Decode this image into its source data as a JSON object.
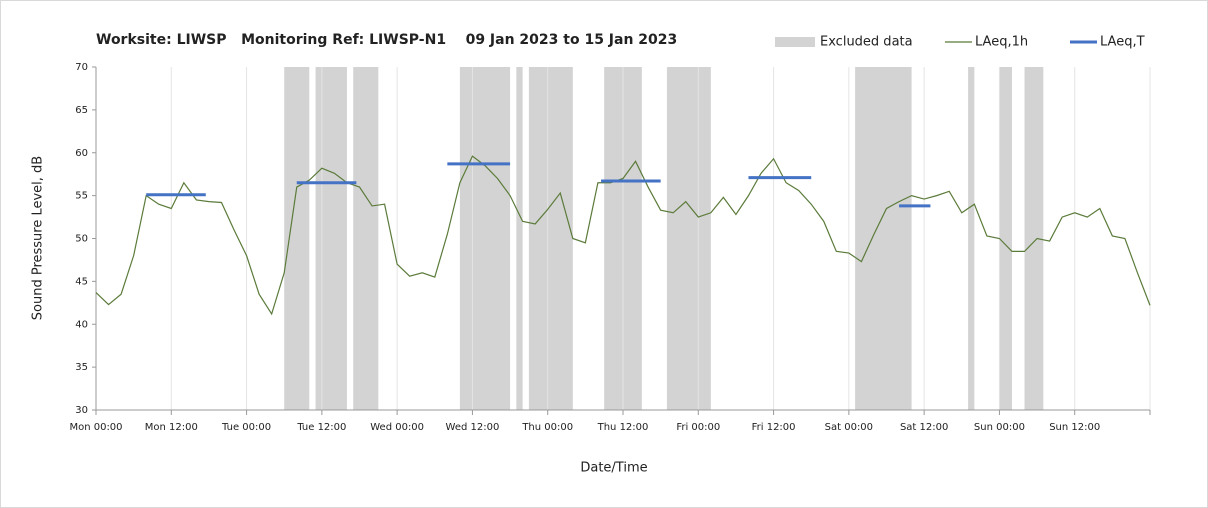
{
  "chart_data": {
    "type": "line",
    "title": "Worksite: LIWSP   Monitoring Ref: LIWSP-N1    09 Jan 2023 to 15 Jan 2023",
    "x_label": "Date/Time",
    "y_label": "Sound Pressure Level, dB",
    "xlim": [
      0,
      168
    ],
    "xticks": [
      {
        "value": 0,
        "label": "Mon 00:00"
      },
      {
        "value": 12,
        "label": "Mon 12:00"
      },
      {
        "value": 24,
        "label": "Tue 00:00"
      },
      {
        "value": 36,
        "label": "Tue 12:00"
      },
      {
        "value": 48,
        "label": "Wed 00:00"
      },
      {
        "value": 60,
        "label": "Wed 12:00"
      },
      {
        "value": 72,
        "label": "Thu 00:00"
      },
      {
        "value": 84,
        "label": "Thu 12:00"
      },
      {
        "value": 96,
        "label": "Fri 00:00"
      },
      {
        "value": 108,
        "label": "Fri 12:00"
      },
      {
        "value": 120,
        "label": "Sat 00:00"
      },
      {
        "value": 132,
        "label": "Sat 12:00"
      },
      {
        "value": 144,
        "label": "Sun 00:00"
      },
      {
        "value": 156,
        "label": "Sun 12:00"
      },
      {
        "value": 168,
        "label": ""
      }
    ],
    "ylim": [
      30,
      70
    ],
    "yticks": [
      30,
      35,
      40,
      45,
      50,
      55,
      60,
      65,
      70
    ],
    "grid": true,
    "excluded": {
      "name": "Excluded data",
      "color": "#d3d3d3",
      "ranges": [
        [
          30,
          34
        ],
        [
          35,
          40
        ],
        [
          41,
          45
        ],
        [
          58,
          66
        ],
        [
          67,
          68
        ],
        [
          69,
          76
        ],
        [
          81,
          87
        ],
        [
          91,
          98
        ],
        [
          121,
          130
        ],
        [
          139,
          140
        ],
        [
          144,
          146
        ],
        [
          148,
          151
        ]
      ]
    },
    "x": [
      0,
      2,
      4,
      6,
      8,
      10,
      12,
      14,
      16,
      18,
      20,
      22,
      24,
      26,
      28,
      30,
      32,
      34,
      36,
      38,
      40,
      42,
      44,
      46,
      48,
      50,
      52,
      54,
      56,
      58,
      60,
      62,
      64,
      66,
      68,
      70,
      72,
      74,
      76,
      78,
      80,
      82,
      84,
      86,
      88,
      90,
      92,
      94,
      96,
      98,
      100,
      102,
      104,
      106,
      108,
      110,
      112,
      114,
      116,
      118,
      120,
      122,
      124,
      126,
      128,
      130,
      132,
      134,
      136,
      138,
      140,
      142,
      144,
      146,
      148,
      150,
      152,
      154,
      156,
      158,
      160,
      162,
      164,
      166,
      168
    ],
    "series": [
      {
        "name": "LAeq,1h",
        "color": "#5b7b3a",
        "values": [
          43.7,
          42.3,
          43.5,
          48,
          55,
          54,
          53.5,
          56.5,
          54.5,
          54.3,
          54.2,
          51,
          48,
          43.5,
          41.2,
          46,
          56,
          56.8,
          58.2,
          57.6,
          56.5,
          56,
          53.8,
          54,
          47,
          45.6,
          46,
          45.5,
          50.5,
          56.5,
          59.6,
          58.5,
          57,
          55,
          52,
          51.7,
          53.4,
          55.3,
          50,
          49.5,
          56.5,
          56.5,
          57,
          59,
          56,
          53.3,
          53,
          54.3,
          52.5,
          53,
          54.8,
          52.8,
          55,
          57.6,
          59.3,
          56.5,
          55.6,
          54,
          52,
          48.5,
          48.3,
          47.3,
          50.5,
          53.5,
          54.3,
          55,
          54.6,
          55,
          55.5,
          53,
          54,
          50.3,
          50,
          48.5,
          48.5,
          50,
          49.7,
          52.5,
          53,
          52.5,
          53.5,
          50.3,
          50,
          46,
          42.2
        ]
      }
    ],
    "averages": {
      "name": "LAeq,T",
      "color": "#4472c4",
      "segments": [
        {
          "x": [
            8,
            17.5
          ],
          "value": 55.1
        },
        {
          "x": [
            32,
            41.5
          ],
          "value": 56.5
        },
        {
          "x": [
            56,
            66
          ],
          "value": 58.7
        },
        {
          "x": [
            80.5,
            90
          ],
          "value": 56.7
        },
        {
          "x": [
            104,
            114
          ],
          "value": 57.1
        },
        {
          "x": [
            128,
            133
          ],
          "value": 53.8
        }
      ]
    }
  }
}
